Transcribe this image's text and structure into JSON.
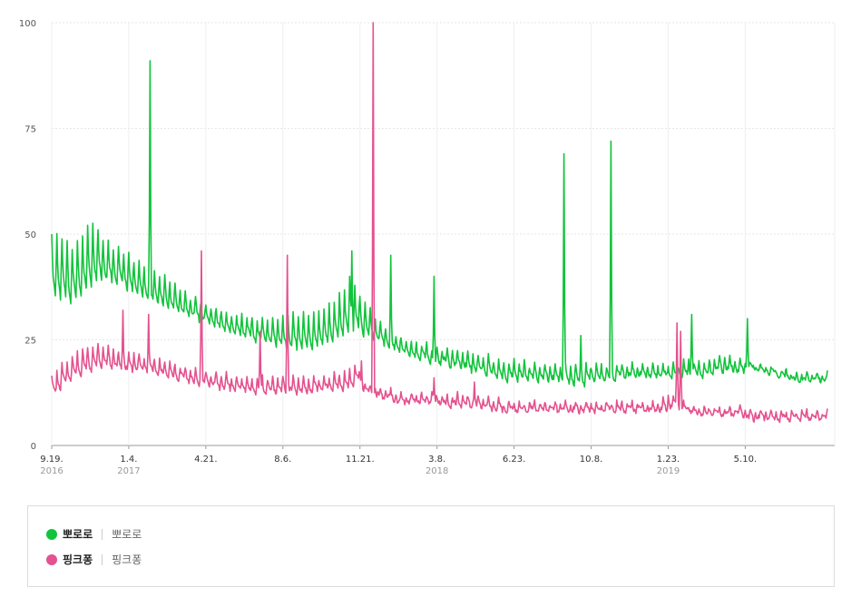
{
  "chart_data": {
    "type": "line",
    "ylim": [
      0,
      100
    ],
    "y_ticks": [
      "0",
      "25",
      "50",
      "75",
      "100"
    ],
    "grid": true,
    "x_ticks": [
      {
        "label": "9.19.",
        "year": "2016",
        "week": 0
      },
      {
        "label": "1.4.",
        "year": "2017",
        "week": 15
      },
      {
        "label": "4.21.",
        "year": "",
        "week": 30
      },
      {
        "label": "8.6.",
        "year": "",
        "week": 45
      },
      {
        "label": "11.21.",
        "year": "",
        "week": 60
      },
      {
        "label": "3.8.",
        "year": "2018",
        "week": 75
      },
      {
        "label": "6.23.",
        "year": "",
        "week": 90
      },
      {
        "label": "10.8.",
        "year": "",
        "week": 105
      },
      {
        "label": "1.23.",
        "year": "2019",
        "week": 120
      },
      {
        "label": "5.10.",
        "year": "",
        "week": 135
      }
    ],
    "x_start": "2016-09-19",
    "x_end": "2019-08-12",
    "legend_placement": "bottom",
    "series": [
      {
        "name": "뽀로로",
        "color": "#12c33c",
        "weekly_baseline": [
          33,
          33,
          33,
          32,
          33,
          34,
          35,
          36,
          37,
          38,
          38,
          38,
          37,
          37,
          36,
          35,
          35,
          34,
          34,
          33,
          33,
          32,
          32,
          31,
          31,
          30,
          30,
          30,
          29,
          29,
          28,
          28,
          27,
          27,
          26,
          26,
          25,
          25,
          25,
          24,
          24,
          24,
          23,
          23,
          23,
          22,
          22,
          22,
          22,
          22,
          22,
          22,
          23,
          23,
          24,
          24,
          25,
          25,
          26,
          26,
          25,
          25,
          24,
          24,
          23,
          23,
          22,
          22,
          21,
          21,
          20,
          20,
          20,
          19,
          19,
          19,
          19,
          18,
          18,
          18,
          18,
          17,
          17,
          17,
          16,
          16,
          16,
          15,
          15,
          15,
          15,
          15,
          15,
          15,
          15,
          15,
          15,
          15,
          15,
          14,
          14,
          14,
          14,
          14,
          15,
          15,
          15,
          15,
          15,
          15,
          16,
          16,
          16,
          16,
          16,
          16,
          16,
          16,
          16,
          16,
          16,
          16,
          16,
          16,
          16,
          16,
          16,
          16,
          17,
          17,
          17,
          17,
          17,
          17,
          17,
          18,
          18,
          18,
          17,
          17,
          17,
          16,
          16,
          16,
          15,
          15,
          15,
          15,
          15,
          15,
          15,
          15
        ],
        "weekly_peak": [
          50,
          50,
          49,
          48,
          47,
          48,
          50,
          52,
          53,
          51,
          49,
          48,
          47,
          47,
          46,
          45,
          44,
          43,
          42,
          41,
          41,
          40,
          40,
          39,
          38,
          37,
          36,
          35,
          35,
          34,
          33,
          33,
          32,
          32,
          31,
          31,
          31,
          31,
          31,
          30,
          30,
          30,
          30,
          30,
          30,
          30,
          31,
          31,
          31,
          31,
          31,
          31,
          32,
          32,
          33,
          34,
          36,
          37,
          40,
          38,
          35,
          34,
          32,
          30,
          29,
          28,
          27,
          26,
          25,
          25,
          24,
          24,
          24,
          24,
          23,
          23,
          23,
          23,
          23,
          22,
          22,
          22,
          22,
          21,
          21,
          21,
          20,
          20,
          20,
          20,
          20,
          20,
          20,
          19,
          19,
          19,
          19,
          19,
          19,
          19,
          19,
          19,
          19,
          19,
          19,
          19,
          19,
          19,
          19,
          19,
          19,
          19,
          19,
          19,
          19,
          19,
          19,
          19,
          19,
          19,
          19,
          19,
          19,
          20,
          20,
          20,
          20,
          20,
          20,
          21,
          21,
          21,
          21,
          20,
          20,
          20,
          19,
          19,
          19,
          19,
          18,
          18,
          18,
          18,
          17,
          17,
          17,
          17,
          17,
          17,
          17,
          17
        ],
        "spikes": [
          {
            "date": "2017-01-31",
            "value": 91
          },
          {
            "date": "2017-11-02",
            "value": 46
          },
          {
            "date": "2017-12-25",
            "value": 45
          },
          {
            "date": "2018-02-22",
            "value": 40
          },
          {
            "date": "2018-08-18",
            "value": 69
          },
          {
            "date": "2018-09-10",
            "value": 26
          },
          {
            "date": "2018-10-21",
            "value": 72
          },
          {
            "date": "2019-02-08",
            "value": 31
          },
          {
            "date": "2019-04-25",
            "value": 30
          }
        ]
      },
      {
        "name": "핑크퐁",
        "color": "#e4528f",
        "weekly_baseline": [
          12,
          13,
          14,
          15,
          16,
          16,
          17,
          17,
          18,
          18,
          18,
          18,
          18,
          17,
          17,
          17,
          17,
          17,
          17,
          17,
          16,
          16,
          16,
          15,
          15,
          15,
          15,
          14,
          14,
          14,
          14,
          14,
          13,
          13,
          13,
          13,
          13,
          13,
          12,
          12,
          12,
          12,
          12,
          12,
          12,
          12,
          12,
          12,
          12,
          12,
          12,
          13,
          13,
          13,
          13,
          13,
          13,
          13,
          14,
          15,
          13,
          12,
          12,
          11,
          11,
          11,
          10,
          10,
          10,
          10,
          10,
          10,
          10,
          10,
          10,
          10,
          9,
          9,
          9,
          9,
          9,
          9,
          9,
          9,
          9,
          8,
          8,
          8,
          8,
          8,
          8,
          8,
          8,
          8,
          8,
          8,
          8,
          8,
          8,
          8,
          8,
          8,
          8,
          8,
          8,
          8,
          8,
          8,
          8,
          8,
          8,
          8,
          8,
          8,
          8,
          8,
          8,
          8,
          8,
          8,
          8,
          9,
          8,
          8,
          8,
          7,
          7,
          7,
          7,
          7,
          7,
          7,
          7,
          7,
          7,
          6,
          6,
          6,
          6,
          6,
          6,
          6,
          6,
          6,
          6,
          6,
          6,
          6,
          6,
          6,
          6,
          6
        ],
        "weekly_peak": [
          16,
          18,
          19,
          20,
          21,
          22,
          23,
          23,
          24,
          24,
          24,
          23,
          23,
          22,
          22,
          22,
          22,
          21,
          21,
          21,
          21,
          20,
          20,
          20,
          19,
          19,
          18,
          18,
          18,
          18,
          17,
          17,
          17,
          17,
          17,
          16,
          16,
          16,
          16,
          16,
          16,
          16,
          16,
          16,
          16,
          16,
          16,
          16,
          16,
          16,
          16,
          16,
          16,
          16,
          16,
          17,
          17,
          17,
          18,
          19,
          16,
          15,
          14,
          14,
          13,
          13,
          13,
          12,
          12,
          12,
          12,
          12,
          12,
          12,
          12,
          12,
          12,
          12,
          12,
          12,
          12,
          11,
          11,
          11,
          11,
          11,
          11,
          11,
          10,
          10,
          10,
          10,
          10,
          10,
          10,
          10,
          10,
          10,
          10,
          10,
          10,
          10,
          10,
          10,
          10,
          10,
          10,
          10,
          10,
          10,
          10,
          10,
          10,
          10,
          10,
          10,
          10,
          10,
          10,
          11,
          12,
          11,
          10,
          10,
          9,
          9,
          9,
          9,
          9,
          9,
          9,
          9,
          9,
          9,
          9,
          9,
          8,
          8,
          8,
          8,
          8,
          8,
          8,
          8,
          8,
          8,
          8,
          8,
          8,
          8,
          8,
          8
        ],
        "spikes": [
          {
            "date": "2016-12-25",
            "value": 32
          },
          {
            "date": "2017-01-29",
            "value": 31
          },
          {
            "date": "2017-04-11",
            "value": 46
          },
          {
            "date": "2017-06-30",
            "value": 27
          },
          {
            "date": "2017-08-06",
            "value": 45
          },
          {
            "date": "2017-11-15",
            "value": 20
          },
          {
            "date": "2017-12-01",
            "value": 100
          },
          {
            "date": "2018-02-22",
            "value": 16
          },
          {
            "date": "2018-04-18",
            "value": 15
          },
          {
            "date": "2019-01-19",
            "value": 29
          },
          {
            "date": "2019-01-24",
            "value": 27
          }
        ]
      }
    ]
  },
  "legend": [
    {
      "name": "뽀로로",
      "sub": "뽀로로",
      "color": "#12c33c"
    },
    {
      "name": "핑크퐁",
      "sub": "핑크퐁",
      "color": "#e4528f"
    }
  ]
}
